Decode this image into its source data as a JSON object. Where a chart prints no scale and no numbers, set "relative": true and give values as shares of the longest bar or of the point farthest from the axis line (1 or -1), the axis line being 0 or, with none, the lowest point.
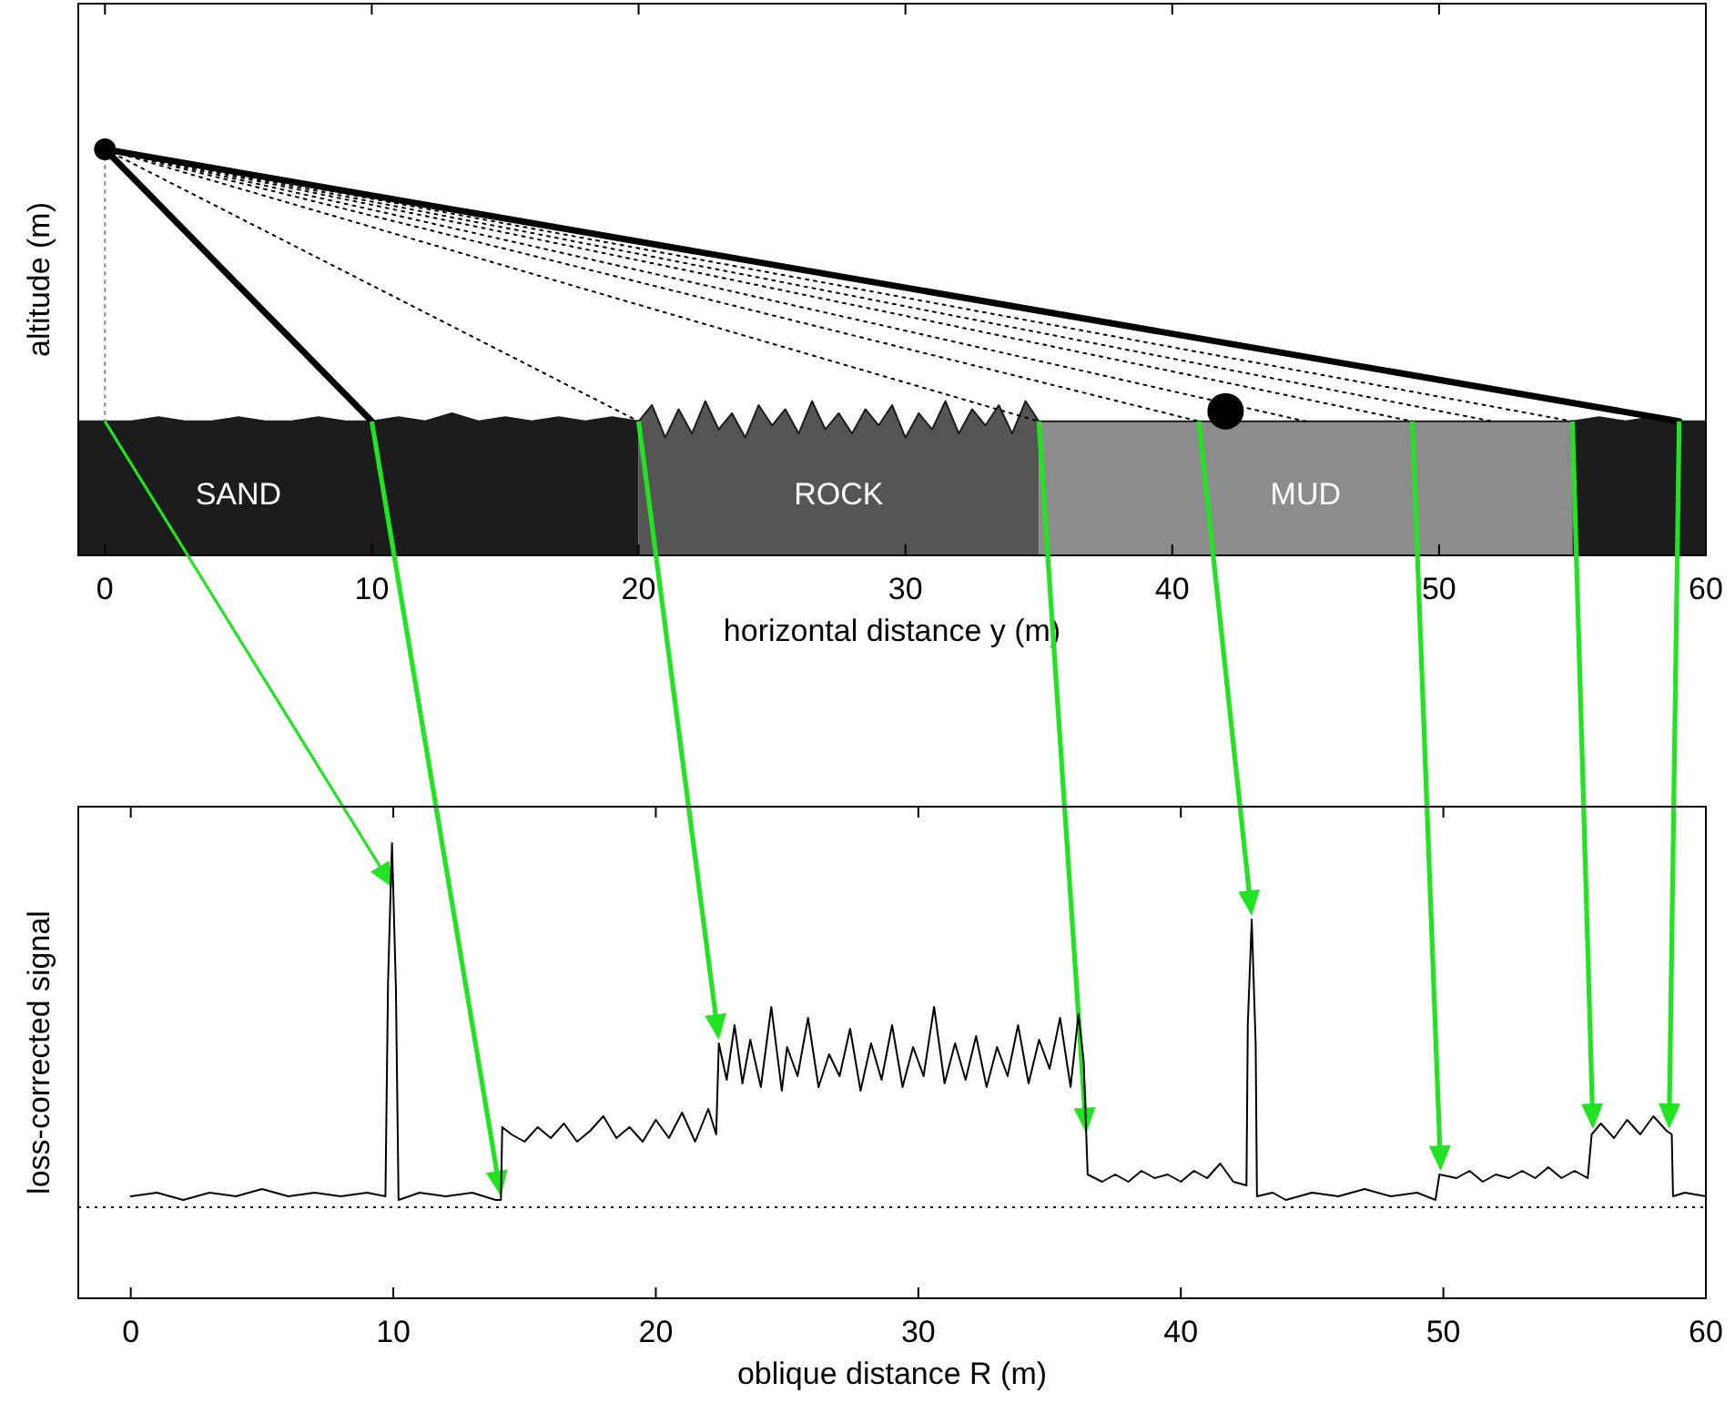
{
  "chart_data": [
    {
      "type": "line",
      "relative": true,
      "xlabel": "horizontal distance y (m)",
      "ylabel": "altitude (m)",
      "xlim": [
        -1,
        60
      ],
      "xticks": [
        0,
        10,
        20,
        30,
        40,
        50,
        60
      ],
      "bands": [
        {
          "axis": "x",
          "from": -1,
          "to": 20,
          "label": "SAND",
          "color": "#1c1c1c"
        },
        {
          "axis": "x",
          "from": 20,
          "to": 35,
          "label": "ROCK",
          "color": "#555555"
        },
        {
          "axis": "x",
          "from": 35,
          "to": 55,
          "label": "MUD",
          "color": "#8c8c8c"
        },
        {
          "axis": "x",
          "from": 55,
          "to": 60,
          "label": null,
          "color": "#1c1c1c"
        }
      ],
      "series": [
        {
          "color": "#1c1c1c",
          "line_style": "solid",
          "x": [
            -1,
            1,
            2,
            3,
            4,
            5,
            6,
            7,
            8,
            9,
            10,
            11,
            12,
            13,
            14,
            15,
            16,
            17,
            18,
            19,
            20,
            20.5,
            21,
            21.5,
            22,
            22.5,
            23,
            23.5,
            24,
            24.5,
            25,
            25.5,
            26,
            26.5,
            27,
            27.5,
            28,
            28.5,
            29,
            29.5,
            30,
            30.5,
            31,
            31.5,
            32,
            32.5,
            33,
            33.5,
            34,
            34.5,
            35,
            36,
            40,
            45,
            50,
            55,
            56,
            57,
            58,
            59,
            60
          ],
          "values": [
            0.33,
            0.33,
            0.34,
            0.33,
            0.33,
            0.34,
            0.33,
            0.33,
            0.34,
            0.33,
            0.33,
            0.34,
            0.33,
            0.35,
            0.33,
            0.34,
            0.33,
            0.34,
            0.33,
            0.34,
            0.33,
            0.37,
            0.29,
            0.36,
            0.3,
            0.38,
            0.31,
            0.35,
            0.29,
            0.37,
            0.32,
            0.36,
            0.3,
            0.38,
            0.31,
            0.35,
            0.3,
            0.36,
            0.32,
            0.37,
            0.29,
            0.35,
            0.31,
            0.38,
            0.3,
            0.36,
            0.32,
            0.37,
            0.3,
            0.38,
            0.33,
            0.33,
            0.33,
            0.33,
            0.33,
            0.33,
            0.34,
            0.33,
            0.34,
            0.33,
            0.33
          ]
        },
        {
          "color": "#000000",
          "line_style": "solid",
          "x": [
            0,
            10
          ],
          "values": [
            1,
            0.33
          ]
        },
        {
          "color": "#000000",
          "line_style": "solid",
          "x": [
            0,
            59
          ],
          "values": [
            1,
            0.33
          ]
        },
        {
          "color": "#888888",
          "line_style": "dotted",
          "x": [
            0,
            0
          ],
          "values": [
            1,
            0.33
          ]
        },
        {
          "color": "#000000",
          "line_style": "dotted",
          "x": [
            0,
            20
          ],
          "values": [
            1,
            0.33
          ]
        },
        {
          "color": "#000000",
          "line_style": "dotted",
          "x": [
            0,
            35
          ],
          "values": [
            1,
            0.33
          ]
        },
        {
          "color": "#000000",
          "line_style": "dotted",
          "x": [
            0,
            41
          ],
          "values": [
            1,
            0.33
          ]
        },
        {
          "color": "#000000",
          "line_style": "dotted",
          "x": [
            0,
            45
          ],
          "values": [
            1,
            0.33
          ]
        },
        {
          "color": "#000000",
          "line_style": "dotted",
          "x": [
            0,
            49
          ],
          "values": [
            1,
            0.33
          ]
        },
        {
          "color": "#000000",
          "line_style": "dotted",
          "x": [
            0,
            52
          ],
          "values": [
            1,
            0.33
          ]
        },
        {
          "color": "#000000",
          "line_style": "dotted",
          "x": [
            0,
            55
          ],
          "values": [
            1,
            0.33
          ]
        },
        {
          "type": "bubble",
          "color": "#000000",
          "x": [
            0,
            42
          ],
          "values": [
            1,
            0.355
          ],
          "sizes": [
            0.36,
            1
          ]
        }
      ]
    },
    {
      "type": "line",
      "relative": true,
      "xlabel": "oblique distance R (m)",
      "ylabel": "loss-corrected signal",
      "xlim": [
        -2,
        60
      ],
      "xticks": [
        0,
        10,
        20,
        30,
        40,
        50,
        60
      ],
      "ref_lines": [
        {
          "axis": "y",
          "value": 0,
          "label": null,
          "color": "#000000",
          "line_style": "dotted"
        }
      ],
      "series": [
        {
          "color": "#000000",
          "line_style": "solid",
          "x": [
            0,
            1,
            2,
            3,
            4,
            5,
            6,
            7,
            8,
            9,
            9.7,
            9.8,
            9.95,
            10.1,
            10.2,
            11,
            12,
            13,
            13.9,
            14.1,
            14.15,
            14.5,
            15,
            15.5,
            16,
            16.5,
            17,
            17.5,
            18,
            18.5,
            19,
            19.5,
            20,
            20.5,
            21,
            21.5,
            22,
            22.3,
            22.4,
            22.7,
            23,
            23.3,
            23.6,
            24,
            24.4,
            24.8,
            25,
            25.4,
            25.8,
            26.2,
            26.6,
            27,
            27.4,
            27.8,
            28.2,
            28.6,
            29,
            29.4,
            29.8,
            30.2,
            30.6,
            31,
            31.4,
            31.8,
            32.2,
            32.6,
            33,
            33.4,
            33.8,
            34.2,
            34.6,
            35,
            35.4,
            35.8,
            36.1,
            36.3,
            36.45,
            37,
            37.5,
            38,
            38.5,
            39,
            39.5,
            40,
            40.5,
            41,
            41.5,
            42,
            42.5,
            42.55,
            42.7,
            42.85,
            42.9,
            43.5,
            44,
            45,
            46,
            47,
            48,
            49,
            49.7,
            49.85,
            50.5,
            51,
            51.5,
            52,
            52.5,
            53,
            53.5,
            54,
            54.5,
            55,
            55.5,
            55.65,
            56,
            56.5,
            57,
            57.5,
            58,
            58.5,
            58.7,
            58.75,
            59.2,
            60
          ],
          "values": [
            0.03,
            0.04,
            0.02,
            0.04,
            0.03,
            0.05,
            0.03,
            0.04,
            0.03,
            0.04,
            0.03,
            0.62,
            1,
            0.6,
            0.02,
            0.04,
            0.03,
            0.04,
            0.02,
            0.02,
            0.22,
            0.2,
            0.18,
            0.22,
            0.19,
            0.23,
            0.18,
            0.21,
            0.25,
            0.19,
            0.22,
            0.18,
            0.24,
            0.19,
            0.26,
            0.18,
            0.27,
            0.2,
            0.45,
            0.35,
            0.5,
            0.34,
            0.46,
            0.33,
            0.55,
            0.32,
            0.44,
            0.36,
            0.52,
            0.33,
            0.42,
            0.36,
            0.49,
            0.32,
            0.45,
            0.35,
            0.5,
            0.33,
            0.44,
            0.36,
            0.55,
            0.34,
            0.45,
            0.35,
            0.47,
            0.33,
            0.44,
            0.36,
            0.5,
            0.34,
            0.46,
            0.38,
            0.52,
            0.33,
            0.53,
            0.4,
            0.09,
            0.07,
            0.09,
            0.07,
            0.1,
            0.08,
            0.09,
            0.07,
            0.1,
            0.08,
            0.12,
            0.07,
            0.06,
            0.5,
            0.79,
            0.45,
            0.03,
            0.04,
            0.02,
            0.04,
            0.03,
            0.05,
            0.03,
            0.04,
            0.02,
            0.09,
            0.08,
            0.1,
            0.07,
            0.09,
            0.08,
            0.1,
            0.08,
            0.11,
            0.08,
            0.1,
            0.08,
            0.2,
            0.23,
            0.19,
            0.24,
            0.2,
            0.25,
            0.21,
            0.2,
            0.03,
            0.04,
            0.03
          ]
        }
      ]
    }
  ]
}
